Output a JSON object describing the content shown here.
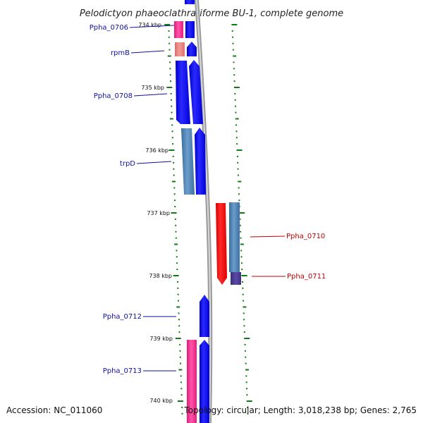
{
  "title": "Pelodictyon phaeoclathratiforme BU-1, complete genome",
  "footer": {
    "accession": "Accession: NC_011060",
    "topology": "Topology: circular; Length: 3,018,238 bp; Genes: 2,765"
  },
  "colors": {
    "cds_forward": "#0000ff",
    "cds_reverse": "#ff0000",
    "cds_steelblue": "#4f86b8",
    "rna_pink": "#ff2f92",
    "rna_salmon": "#e8807c",
    "purple": "#4b3d8f",
    "backbone": "#888888",
    "ticks": "#127a12",
    "label_forward": "#1010a0",
    "label_reverse": "#c00000"
  },
  "ruler": [
    {
      "label": "734 kbp",
      "position_kbp": 734
    },
    {
      "label": "735 kbp",
      "position_kbp": 735
    },
    {
      "label": "736 kbp",
      "position_kbp": 736
    },
    {
      "label": "737 kbp",
      "position_kbp": 737
    },
    {
      "label": "738 kbp",
      "position_kbp": 738
    },
    {
      "label": "739 kbp",
      "position_kbp": 739
    },
    {
      "label": "740 kbp",
      "position_kbp": 740
    }
  ],
  "gene_labels": [
    {
      "name": "Ppha_0706",
      "strand": "forward"
    },
    {
      "name": "rpmB",
      "strand": "forward"
    },
    {
      "name": "Ppha_0708",
      "strand": "forward"
    },
    {
      "name": "trpD",
      "strand": "forward"
    },
    {
      "name": "Ppha_0710",
      "strand": "reverse"
    },
    {
      "name": "Ppha_0711",
      "strand": "reverse"
    },
    {
      "name": "Ppha_0712",
      "strand": "forward"
    },
    {
      "name": "Ppha_0713",
      "strand": "forward"
    }
  ]
}
